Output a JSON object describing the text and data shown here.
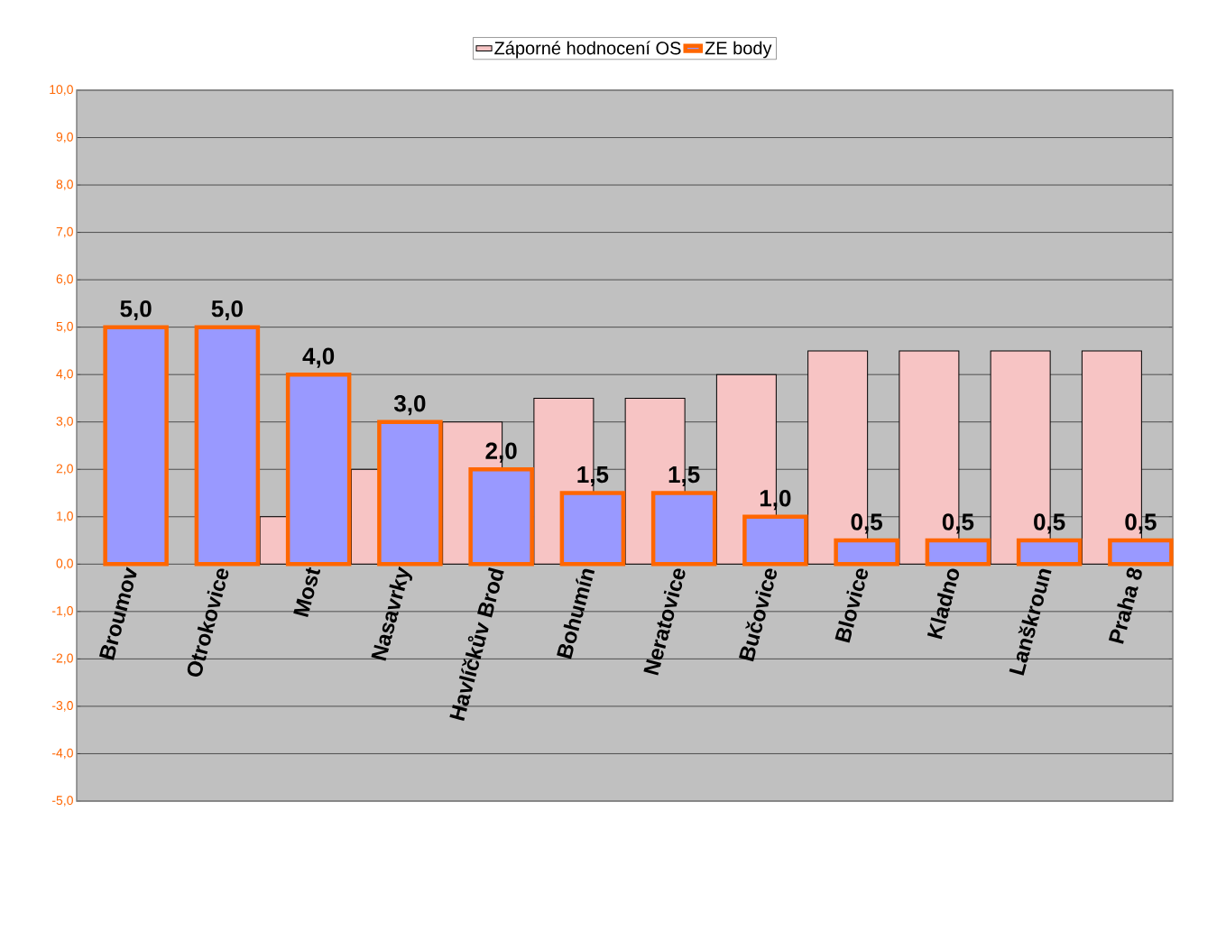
{
  "chart_data": {
    "type": "bar",
    "categories": [
      "Broumov",
      "Otrokovice",
      "Most",
      "Nasavrky",
      "Havlíčkův Brod",
      "Bohumín",
      "Neratovice",
      "Bučovice",
      "Blovice",
      "Kladno",
      "Lanškroun",
      "Praha 8"
    ],
    "series": [
      {
        "name": "Záporné hodnocení OS",
        "color": "#f7c4c4",
        "values": [
          null,
          null,
          1.0,
          2.0,
          3.0,
          3.5,
          3.5,
          4.0,
          4.5,
          4.5,
          4.5,
          4.5
        ]
      },
      {
        "name": "ZE body",
        "color": "#9999ff",
        "values": [
          5.0,
          5.0,
          4.0,
          3.0,
          2.0,
          1.5,
          1.5,
          1.0,
          0.5,
          0.5,
          0.5,
          0.5
        ],
        "value_labels": [
          "5,0",
          "5,0",
          "4,0",
          "3,0",
          "2,0",
          "1,5",
          "1,5",
          "1,0",
          "0,5",
          "0,5",
          "0,5",
          "0,5"
        ]
      }
    ],
    "ylim": [
      -5,
      10
    ],
    "yticks": [
      {
        "value": -5,
        "label": "-5,0"
      },
      {
        "value": -4,
        "label": "-4,0"
      },
      {
        "value": -3,
        "label": "-3,0"
      },
      {
        "value": -2,
        "label": "-2,0"
      },
      {
        "value": -1,
        "label": "-1,0"
      },
      {
        "value": 0,
        "label": "0,0"
      },
      {
        "value": 1,
        "label": "1,0"
      },
      {
        "value": 2,
        "label": "2,0"
      },
      {
        "value": 3,
        "label": "3,0"
      },
      {
        "value": 4,
        "label": "4,0"
      },
      {
        "value": 5,
        "label": "5,0"
      },
      {
        "value": 6,
        "label": "6,0"
      },
      {
        "value": 7,
        "label": "7,0"
      },
      {
        "value": 8,
        "label": "8,0"
      },
      {
        "value": 9,
        "label": "9,0"
      },
      {
        "value": 10,
        "label": "10,0"
      }
    ],
    "grid": "y",
    "legend": "top"
  }
}
